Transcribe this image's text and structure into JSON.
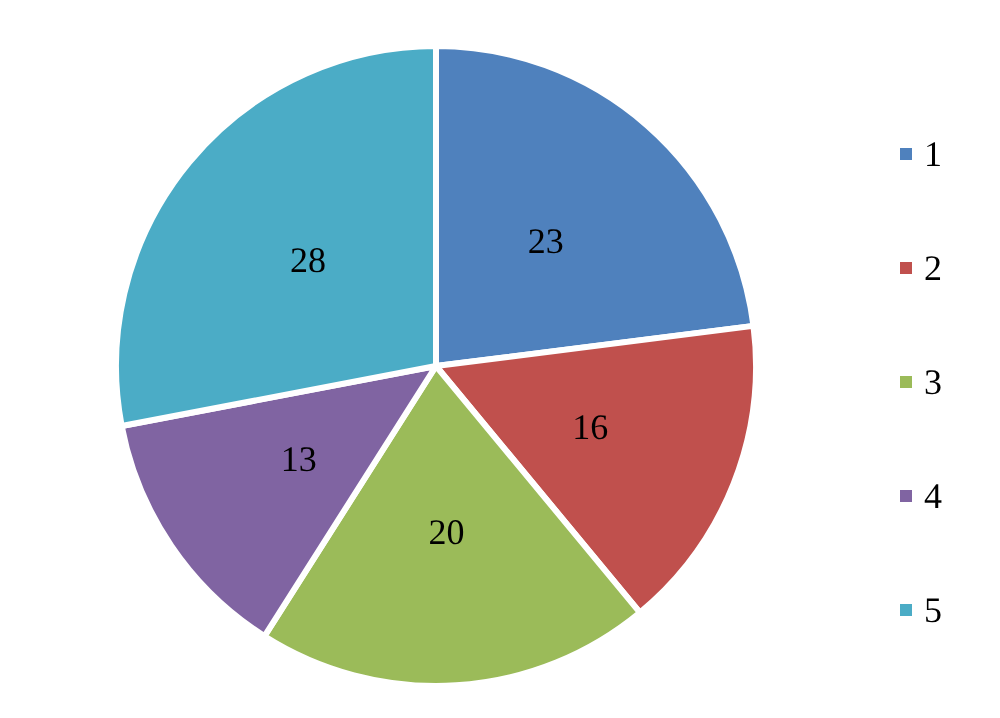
{
  "chart_data": {
    "type": "pie",
    "categories": [
      "1",
      "2",
      "3",
      "4",
      "5"
    ],
    "values": [
      23,
      16,
      20,
      13,
      28
    ],
    "colors": [
      "#4f81bd",
      "#c0504d",
      "#9bbb59",
      "#8064a2",
      "#4bacc6"
    ],
    "data_labels": true,
    "legend": "right"
  }
}
